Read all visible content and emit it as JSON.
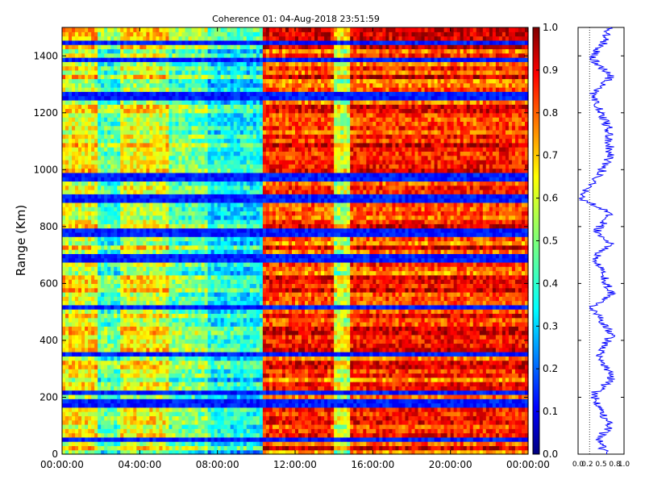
{
  "chart_data": [
    {
      "type": "heatmap",
      "title": "Coherence 01: 04-Aug-2018 23:51:59",
      "xlabel": "",
      "ylabel": "Range (Km)",
      "x_tick_labels": [
        "00:00:00",
        "04:00:00",
        "08:00:00",
        "12:00:00",
        "16:00:00",
        "20:00:00",
        "00:00:00"
      ],
      "y_tick_labels": [
        "0",
        "200",
        "400",
        "600",
        "800",
        "1000",
        "1200",
        "1400"
      ],
      "ylim": [
        0,
        1500
      ],
      "xlim_hours": [
        0,
        24
      ],
      "colormap": "jet",
      "colorbar": {
        "range": [
          0.0,
          1.0
        ],
        "tick_labels": [
          "0.0",
          "0.1",
          "0.2",
          "0.3",
          "0.4",
          "0.5",
          "0.6",
          "0.7",
          "0.8",
          "0.9",
          "1.0"
        ]
      },
      "time_segments": [
        {
          "start_hour": 0.0,
          "end_hour": 1.8,
          "mean_coherence": 0.62
        },
        {
          "start_hour": 1.8,
          "end_hour": 3.0,
          "mean_coherence": 0.45
        },
        {
          "start_hour": 3.0,
          "end_hour": 5.5,
          "mean_coherence": 0.6
        },
        {
          "start_hour": 5.5,
          "end_hour": 7.5,
          "mean_coherence": 0.48
        },
        {
          "start_hour": 7.5,
          "end_hour": 10.3,
          "mean_coherence": 0.38
        },
        {
          "start_hour": 10.3,
          "end_hour": 14.0,
          "mean_coherence": 0.82
        },
        {
          "start_hour": 14.0,
          "end_hour": 14.9,
          "mean_coherence": 0.58
        },
        {
          "start_hour": 14.9,
          "end_hour": 24.0,
          "mean_coherence": 0.83
        }
      ],
      "low_coherence_ranges_km": [
        55,
        180,
        215,
        350,
        515,
        690,
        780,
        900,
        975,
        1260,
        1390,
        1445
      ]
    },
    {
      "type": "line",
      "description_axis": "mean coherence versus range",
      "x_tick_labels": [
        "0.0",
        "0.2",
        "0.5",
        "0.8",
        "1.0"
      ],
      "xlim": [
        0,
        1
      ],
      "ylim": [
        0,
        1500
      ],
      "reference_line_x": 0.25,
      "color": "#0000ff",
      "profile": [
        {
          "range_km": 0,
          "value": 0.6
        },
        {
          "range_km": 55,
          "value": 0.45
        },
        {
          "range_km": 100,
          "value": 0.7
        },
        {
          "range_km": 180,
          "value": 0.4
        },
        {
          "range_km": 215,
          "value": 0.35
        },
        {
          "range_km": 260,
          "value": 0.75
        },
        {
          "range_km": 350,
          "value": 0.45
        },
        {
          "range_km": 420,
          "value": 0.72
        },
        {
          "range_km": 515,
          "value": 0.3
        },
        {
          "range_km": 560,
          "value": 0.72
        },
        {
          "range_km": 630,
          "value": 0.55
        },
        {
          "range_km": 690,
          "value": 0.35
        },
        {
          "range_km": 740,
          "value": 0.7
        },
        {
          "range_km": 780,
          "value": 0.4
        },
        {
          "range_km": 850,
          "value": 0.7
        },
        {
          "range_km": 900,
          "value": 0.05
        },
        {
          "range_km": 975,
          "value": 0.45
        },
        {
          "range_km": 1050,
          "value": 0.7
        },
        {
          "range_km": 1150,
          "value": 0.65
        },
        {
          "range_km": 1260,
          "value": 0.3
        },
        {
          "range_km": 1330,
          "value": 0.72
        },
        {
          "range_km": 1390,
          "value": 0.3
        },
        {
          "range_km": 1445,
          "value": 0.55
        },
        {
          "range_km": 1500,
          "value": 0.7
        }
      ]
    }
  ]
}
